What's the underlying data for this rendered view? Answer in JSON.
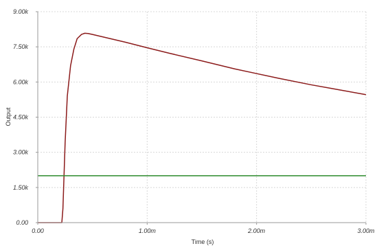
{
  "chart_data": {
    "type": "line",
    "xlabel": "Time (s)",
    "ylabel": "Output",
    "xlim": [
      0,
      0.003
    ],
    "ylim": [
      0,
      9000
    ],
    "grid": true,
    "x_ticks": [
      {
        "value": 0,
        "label": "0.00"
      },
      {
        "value": 0.001,
        "label": "1.00m"
      },
      {
        "value": 0.002,
        "label": "2.00m"
      },
      {
        "value": 0.003,
        "label": "3.00m"
      }
    ],
    "y_ticks": [
      {
        "value": 0,
        "label": "0.00"
      },
      {
        "value": 1500,
        "label": "1.50k"
      },
      {
        "value": 3000,
        "label": "3.00k"
      },
      {
        "value": 4500,
        "label": "4.50k"
      },
      {
        "value": 6000,
        "label": "6.00k"
      },
      {
        "value": 7500,
        "label": "7.50k"
      },
      {
        "value": 9000,
        "label": "9.00k"
      }
    ],
    "series": [
      {
        "color": "#8b1a1a",
        "x": [
          0,
          0.00022,
          0.00023,
          0.00024,
          0.00025,
          0.00027,
          0.0003,
          0.00033,
          0.00036,
          0.0004,
          0.00043,
          0.00046,
          0.0005,
          0.0006,
          0.0008,
          0.001,
          0.0012,
          0.0015,
          0.0018,
          0.002,
          0.0022,
          0.0025,
          0.0028,
          0.003
        ],
        "y": [
          0,
          0,
          600,
          2000,
          3400,
          5400,
          6700,
          7400,
          7850,
          8030,
          8080,
          8070,
          8030,
          7920,
          7700,
          7460,
          7230,
          6900,
          6560,
          6360,
          6160,
          5880,
          5630,
          5460
        ]
      },
      {
        "color": "#2e8b2e",
        "x": [
          0,
          0.003
        ],
        "y": [
          2000,
          2000
        ]
      }
    ]
  }
}
